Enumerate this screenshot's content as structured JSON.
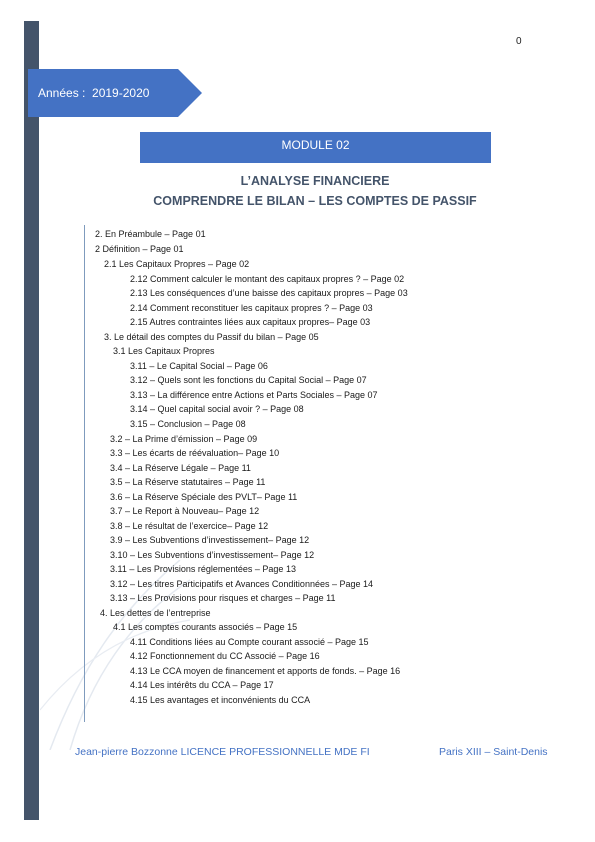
{
  "page_number": "0",
  "year_banner": {
    "text": "Années :  2019-2020",
    "color": "#4472c4"
  },
  "module_label": "MODULE 02",
  "titles": [
    "L’ANALYSE FINANCIERE",
    "COMPRENDRE LE BILAN – LES COMPTES DE PASSIF"
  ],
  "toc": [
    "2. En Préambule – Page 01",
    "2 Définition – Page 01",
    "2.1 Les Capitaux Propres – Page 02",
    "2.12 Comment calculer le montant des capitaux propres ? – Page 02",
    "2.13 Les conséquences d’une baisse des capitaux propres – Page 03",
    "2.14 Comment reconstituer les capitaux propres ? – Page 03",
    "2.15 Autres contraintes liées aux capitaux propres– Page 03",
    "3. Le détail des comptes du Passif du bilan – Page 05",
    "3.1 Les Capitaux Propres",
    "3.11 – Le Capital Social – Page 06",
    "3.12 – Quels sont les fonctions du Capital Social – Page 07",
    "3.13 – La différence entre Actions et Parts Sociales – Page 07",
    "3.14 – Quel capital social avoir ? – Page 08",
    "3.15 – Conclusion – Page 08",
    "3.2 – La Prime d’émission – Page 09",
    "3.3 – Les écarts de réévaluation– Page 10",
    "3.4 – La Réserve Légale – Page 11",
    "3.5 – La Réserve statutaires – Page 11",
    "3.6 – La Réserve Spéciale des PVLT– Page 11",
    "3.7 – Le Report à Nouveau– Page 12",
    "3.8 – Le résultat de l’exercice– Page 12",
    "3.9 – Les Subventions d’investissement– Page 12",
    "3.10 – Les Subventions d’investissement– Page 12",
    "3.11 – Les Provisions réglementées – Page 13",
    "3.12 – Les titres Participatifs et Avances Conditionnées – Page 14",
    "3.13 – Les Provisions pour risques et charges – Page 11",
    "4. Les dettes de l’entreprise",
    "4.1 Les comptes courants associés – Page 15",
    "4.11 Conditions liées au Compte courant associé – Page 15",
    "4.12 Fonctionnement du CC Associé – Page 16",
    "4.13 Le CCA moyen de financement et apports de fonds. – Page 16",
    "4.14 Les intérêts du CCA – Page 17",
    "4.15 Les avantages et inconvénients du CCA"
  ],
  "footer": {
    "left": "Jean-pierre Bozzonne LICENCE PROFESSIONNELLE MDE FI",
    "right": "Paris XIII – Saint-Denis"
  },
  "colors": {
    "accent": "#4472c4",
    "sidebar": "#44546a",
    "title": "#44546a"
  }
}
